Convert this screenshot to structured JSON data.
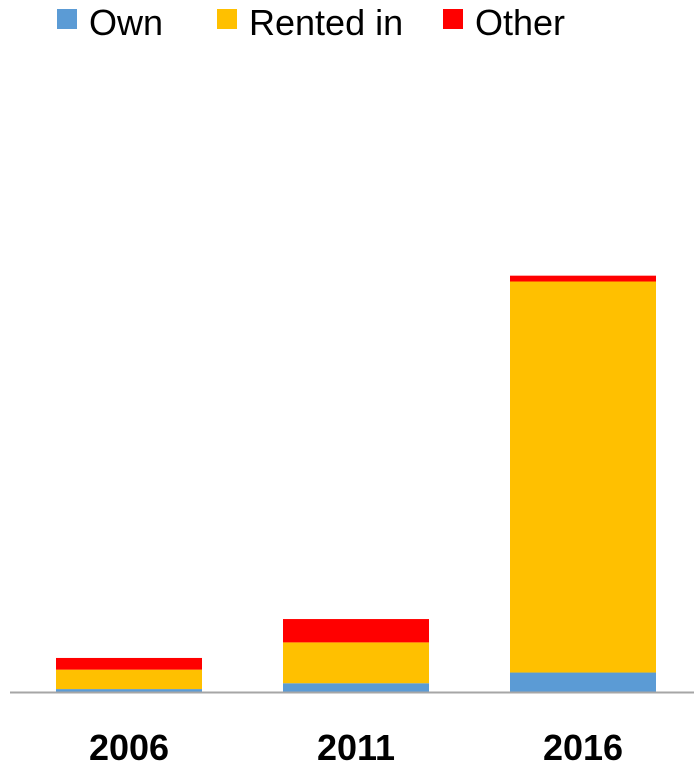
{
  "chart_data": {
    "type": "bar",
    "stacked": true,
    "categories": [
      "2006",
      "2011",
      "2016"
    ],
    "series": [
      {
        "name": "Own",
        "color": "#5B9BD5",
        "values": [
          0.15,
          0.45,
          1.0
        ]
      },
      {
        "name": "Rented in",
        "color": "#FFC000",
        "values": [
          1.0,
          2.1,
          20.1
        ]
      },
      {
        "name": "Other",
        "color": "#FF0000",
        "values": [
          0.6,
          1.2,
          0.3
        ]
      }
    ],
    "ylim": [
      0,
      33
    ],
    "legend_position": "top-left",
    "grid": false,
    "axis_color": "#A6A6A6"
  }
}
